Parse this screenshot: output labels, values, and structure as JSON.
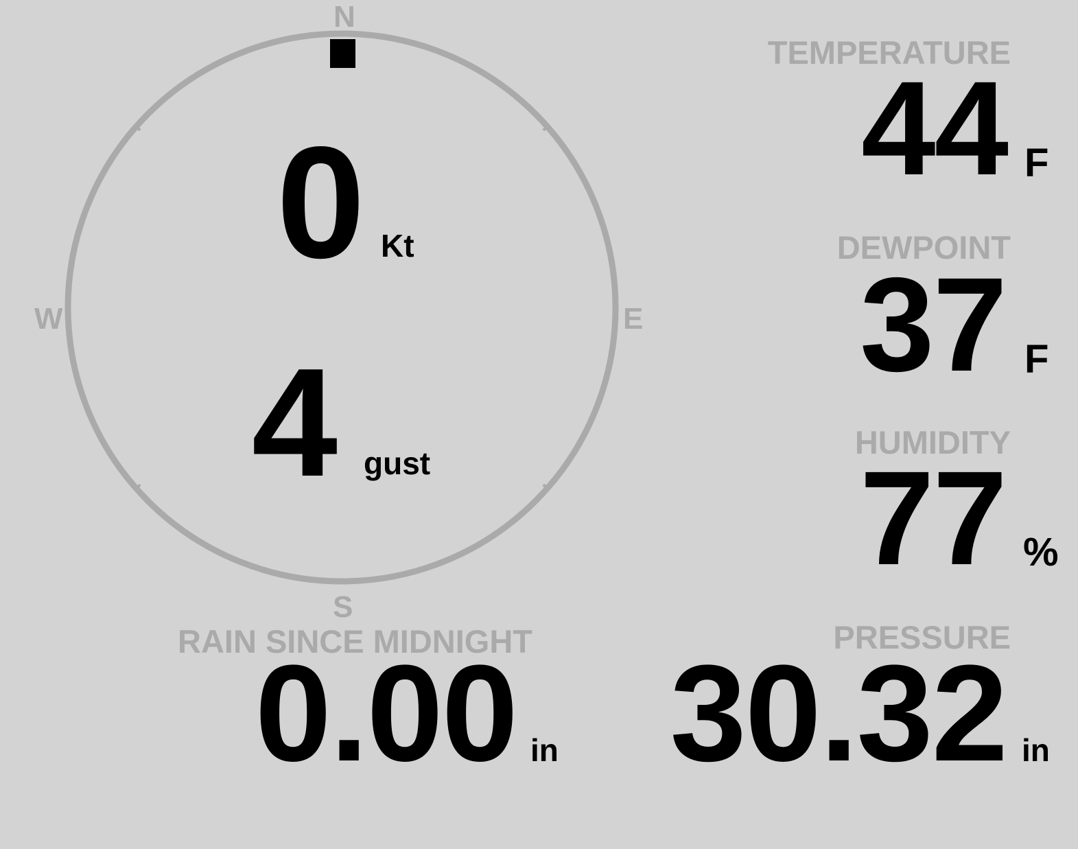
{
  "colors": {
    "background": "#d3d3d3",
    "label": "#aaaaaa",
    "value": "#000000",
    "compass_ring": "#aaaaaa",
    "wind_marker": "#000000"
  },
  "compass": {
    "north": "N",
    "south": "S",
    "east": "E",
    "west": "W",
    "wind_direction_deg": 0
  },
  "wind": {
    "speed": "0",
    "speed_unit": "Kt",
    "gust": "4",
    "gust_unit": "gust"
  },
  "temperature": {
    "label": "TEMPERATURE",
    "value": "44",
    "unit": "F"
  },
  "dewpoint": {
    "label": "DEWPOINT",
    "value": "37",
    "unit": "F"
  },
  "humidity": {
    "label": "HUMIDITY",
    "value": "77",
    "unit": "%"
  },
  "rain": {
    "label": "RAIN SINCE MIDNIGHT",
    "value": "0.00",
    "unit": "in"
  },
  "pressure": {
    "label": "PRESSURE",
    "value": "30.32",
    "unit": "in"
  }
}
